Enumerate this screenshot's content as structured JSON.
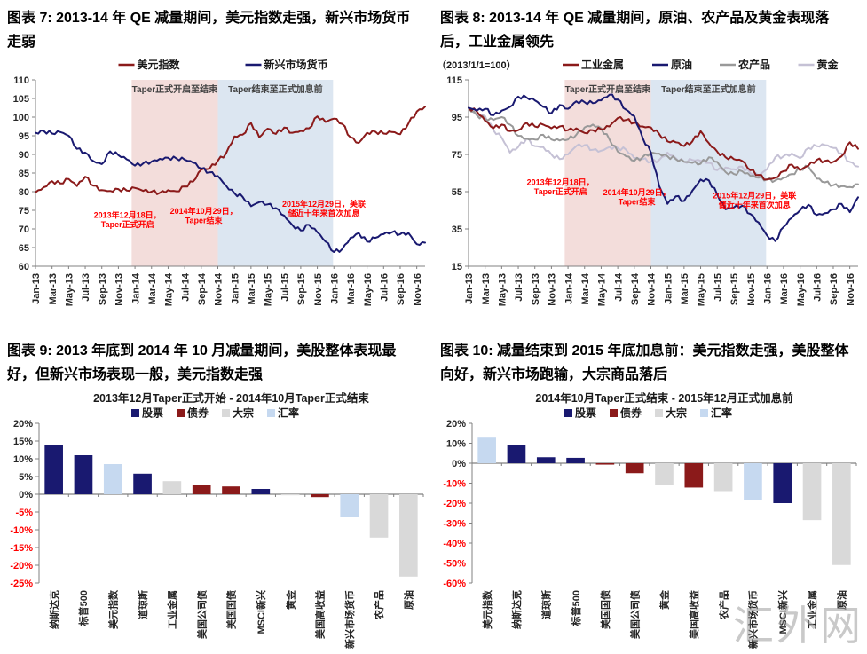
{
  "watermark": "汇外网",
  "palette": {
    "navy": "#191970",
    "dark_red": "#8B1A1A",
    "bar_gray": "#D9D9D9",
    "bar_light_blue": "#C6D9F0",
    "line_gray": "#999999",
    "line_gold": "#C5C1D5",
    "band_pink": "#F3DDDB",
    "band_blue": "#DCE6F1",
    "negative_label_red": "#FF0000",
    "axis_gray": "#808080"
  },
  "chart_data": [
    {
      "type": "line",
      "figure_title": "图表 7: 2013-14 年 QE 减量期间，美元指数走强，新兴市场货币走弱",
      "ylim": [
        60,
        110
      ],
      "ytick_step": 5,
      "n_months": 48,
      "x_labels": [
        "Jan-13",
        "Mar-13",
        "May-13",
        "Jul-13",
        "Sep-13",
        "Nov-13",
        "Jan-14",
        "Mar-14",
        "May-14",
        "Jul-14",
        "Sep-14",
        "Nov-14",
        "Jan-15",
        "Mar-15",
        "May-15",
        "Jul-15",
        "Sep-15",
        "Nov-15",
        "Jan-16",
        "Mar-16",
        "May-16",
        "Jul-16",
        "Sep-16",
        "Nov-16"
      ],
      "regions": [
        {
          "label": "Taper正式开启至结束",
          "from_month": 11.6,
          "to_month": 22,
          "color": "#F3DDDB"
        },
        {
          "label": "Taper结束至正式加息前",
          "from_month": 22,
          "to_month": 35.9,
          "color": "#DCE6F1"
        }
      ],
      "annotations": [
        {
          "text": "2013年12月18日，\nTaper正式开启",
          "month": 11.1,
          "value": 73.0
        },
        {
          "text": "2014年10月29日，\nTaper结束",
          "month": 20.3,
          "value": 74.0
        },
        {
          "text": "2015年12月29日，美联\n储近十年来首次加息",
          "month": 34.8,
          "value": 76.0
        }
      ],
      "legend": [
        {
          "name": "美元指数",
          "color": "#8B1A1A"
        },
        {
          "name": "新兴市场货币",
          "color": "#191970"
        }
      ],
      "series": [
        {
          "name": "美元指数",
          "color": "#8B1A1A",
          "values": [
            79.8,
            81.2,
            82.8,
            82.2,
            83.4,
            81.5,
            84.0,
            81.6,
            80.4,
            80.2,
            80.7,
            80.3,
            81.0,
            80.2,
            80.0,
            79.7,
            80.4,
            80.1,
            81.4,
            82.7,
            85.9,
            86.2,
            88.3,
            90.3,
            94.8,
            95.3,
            98.4,
            94.6,
            96.9,
            95.5,
            97.2,
            95.8,
            96.3,
            97.0,
            100.2,
            98.7,
            99.6,
            98.2,
            94.6,
            93.1,
            95.8,
            96.1,
            95.6,
            96.0,
            95.4,
            98.3,
            101.5,
            102.8
          ]
        },
        {
          "name": "新兴市场货币",
          "color": "#191970",
          "values": [
            95.8,
            96.3,
            95.6,
            96.0,
            95.0,
            91.5,
            90.5,
            88.2,
            87.4,
            90.8,
            89.8,
            88.7,
            87.0,
            87.6,
            88.1,
            88.8,
            89.1,
            88.9,
            88.6,
            87.8,
            86.2,
            85.2,
            84.2,
            81.6,
            79.6,
            78.6,
            76.1,
            77.2,
            76.6,
            75.6,
            73.6,
            71.0,
            69.6,
            71.1,
            69.1,
            66.6,
            63.8,
            64.6,
            67.6,
            68.9,
            66.6,
            67.6,
            68.6,
            69.1,
            68.6,
            68.9,
            65.9,
            66.3
          ]
        }
      ]
    },
    {
      "type": "line",
      "figure_title": "图表 8: 2013-14 年 QE 减量期间，原油、农产品及黄金表现落后，工业金属领先",
      "note": "（2013/1/1=100）",
      "ylim": [
        15,
        115
      ],
      "ytick_step": 20,
      "n_months": 48,
      "x_labels": [
        "Jan-13",
        "Mar-13",
        "May-13",
        "Jul-13",
        "Sep-13",
        "Nov-13",
        "Jan-14",
        "Mar-14",
        "May-14",
        "Jul-14",
        "Sep-14",
        "Nov-14",
        "Jan-15",
        "Mar-15",
        "May-15",
        "Jul-15",
        "Sep-15",
        "Nov-15",
        "Jan-16",
        "Mar-16",
        "May-16",
        "Jul-16",
        "Sep-16",
        "Nov-16"
      ],
      "regions": [
        {
          "label": "Taper正式开启至结束",
          "from_month": 11.6,
          "to_month": 22,
          "color": "#F3DDDB"
        },
        {
          "label": "Taper结束至正式加息前",
          "from_month": 22,
          "to_month": 35.9,
          "color": "#DCE6F1"
        }
      ],
      "annotations": [
        {
          "text": "2013年12月18日，\nTaper正式开启",
          "month": 11.1,
          "value": 58.5
        },
        {
          "text": "2014年10月29日，\nTaper结束",
          "month": 20.3,
          "value": 53.0
        },
        {
          "text": "2015年12月29日，美联\n储近十年来首次加息",
          "month": 34.5,
          "value": 51.5
        }
      ],
      "legend": [
        {
          "name": "工业金属",
          "color": "#8B1A1A"
        },
        {
          "name": "原油",
          "color": "#191970"
        },
        {
          "name": "农产品",
          "color": "#999999"
        },
        {
          "name": "黄金",
          "color": "#C5C1D5"
        }
      ],
      "series": [
        {
          "name": "黄金",
          "color": "#C5C1D5",
          "values": [
            100,
            96.5,
            95.5,
            88,
            84,
            76,
            79,
            83.5,
            79.5,
            79,
            75,
            72.5,
            75,
            79.5,
            80,
            77.5,
            77,
            79,
            78.5,
            77.5,
            73,
            72.5,
            71,
            72,
            76,
            73,
            71,
            72,
            71.5,
            70.5,
            66.5,
            68,
            67,
            68.5,
            65,
            63.5,
            67,
            73.5,
            74,
            75.5,
            73,
            78.5,
            79.5,
            80,
            78.5,
            75.5,
            71,
            68.5
          ]
        },
        {
          "name": "农产品",
          "color": "#999999",
          "values": [
            100,
            96,
            94,
            93.5,
            95,
            91,
            85,
            83.5,
            83,
            85.5,
            83,
            82.5,
            83,
            85.5,
            89.5,
            91,
            89,
            83,
            76.5,
            74,
            71.5,
            73.5,
            76,
            75.5,
            74,
            72.5,
            71,
            70.5,
            70,
            73.5,
            71,
            65.5,
            64.5,
            66,
            63.5,
            62.5,
            61.5,
            61,
            62.5,
            64.5,
            67,
            68.5,
            62,
            60,
            58.5,
            58,
            57.5,
            59
          ]
        },
        {
          "name": "工业金属",
          "color": "#8B1A1A",
          "values": [
            100,
            98,
            93,
            89,
            91,
            87.5,
            88,
            92,
            90,
            91,
            89,
            90,
            88,
            89,
            86.5,
            88,
            88.5,
            90,
            94.5,
            93.5,
            92,
            90,
            89.5,
            86,
            82,
            81.5,
            79.5,
            82,
            87.5,
            81,
            76.5,
            73.5,
            72.5,
            71.5,
            66.5,
            64,
            61.5,
            62.5,
            66,
            69.5,
            66.5,
            69,
            72,
            71.5,
            71,
            74,
            81.5,
            78
          ]
        },
        {
          "name": "原油",
          "color": "#191970",
          "values": [
            100,
            98.5,
            99.5,
            96,
            98.5,
            100.5,
            106,
            105.5,
            104,
            100.5,
            97,
            101.5,
            99.5,
            103.5,
            103,
            102.5,
            104,
            107,
            104.5,
            99,
            95.5,
            84,
            76,
            58,
            48.5,
            52.5,
            50,
            55.5,
            61.5,
            61,
            53.5,
            45.5,
            46.5,
            47.5,
            43,
            38.5,
            31.5,
            28.5,
            36,
            41,
            45,
            48,
            42.5,
            43.5,
            45.5,
            48.5,
            44,
            52
          ]
        }
      ]
    },
    {
      "type": "bar",
      "figure_title": "图表 9: 2013 年底到 2014 年 10 月减量期间，美股整体表现最好，但新兴市场表现一般，美元指数走强",
      "subtitle": "2013年12月Taper正式开始 - 2014年10月Taper正式结束",
      "ylim": [
        -25,
        20
      ],
      "ytick_step": 5,
      "legend": [
        {
          "name": "股票",
          "color": "#191970"
        },
        {
          "name": "债券",
          "color": "#8B1A1A"
        },
        {
          "name": "大宗",
          "color": "#D9D9D9"
        },
        {
          "name": "汇率",
          "color": "#C6D9F0"
        }
      ],
      "bars": [
        {
          "label": "纳斯达克",
          "value": 13.8,
          "group": "股票"
        },
        {
          "label": "标普500",
          "value": 11.0,
          "group": "股票"
        },
        {
          "label": "美元指数",
          "value": 8.5,
          "group": "汇率"
        },
        {
          "label": "道琼斯",
          "value": 5.8,
          "group": "股票"
        },
        {
          "label": "工业金属",
          "value": 3.7,
          "group": "大宗"
        },
        {
          "label": "美国公司债",
          "value": 2.7,
          "group": "债券"
        },
        {
          "label": "美国国债",
          "value": 2.2,
          "group": "债券"
        },
        {
          "label": "MSCI新兴",
          "value": 1.5,
          "group": "股票"
        },
        {
          "label": "黄金",
          "value": -0.3,
          "group": "大宗"
        },
        {
          "label": "美国高收益",
          "value": -0.8,
          "group": "债券"
        },
        {
          "label": "新兴市场货币",
          "value": -6.5,
          "group": "汇率"
        },
        {
          "label": "农产品",
          "value": -12.2,
          "group": "大宗"
        },
        {
          "label": "原油",
          "value": -23.2,
          "group": "大宗"
        }
      ]
    },
    {
      "type": "bar",
      "figure_title": "图表 10: 减量结束到 2015 年底加息前：美元指数走强，美股整体向好，新兴市场跑输，大宗商品落后",
      "subtitle": "2014年10月Taper正式结束 - 2015年12月正式加息前",
      "ylim": [
        -60,
        20
      ],
      "ytick_step": 10,
      "legend": [
        {
          "name": "股票",
          "color": "#191970"
        },
        {
          "name": "债券",
          "color": "#8B1A1A"
        },
        {
          "name": "大宗",
          "color": "#D9D9D9"
        },
        {
          "name": "汇率",
          "color": "#C6D9F0"
        }
      ],
      "bars": [
        {
          "label": "美元指数",
          "value": 12.8,
          "group": "汇率"
        },
        {
          "label": "纳斯达克",
          "value": 9.0,
          "group": "股票"
        },
        {
          "label": "道琼斯",
          "value": 3.0,
          "group": "股票"
        },
        {
          "label": "标普500",
          "value": 2.7,
          "group": "股票"
        },
        {
          "label": "美国国债",
          "value": -0.7,
          "group": "债券"
        },
        {
          "label": "美国公司债",
          "value": -5.0,
          "group": "债券"
        },
        {
          "label": "黄金",
          "value": -11.0,
          "group": "大宗"
        },
        {
          "label": "美国高收益",
          "value": -12.2,
          "group": "债券"
        },
        {
          "label": "农产品",
          "value": -14.0,
          "group": "大宗"
        },
        {
          "label": "新兴市场货币",
          "value": -18.5,
          "group": "汇率"
        },
        {
          "label": "MSCI新兴",
          "value": -20.0,
          "group": "股票"
        },
        {
          "label": "工业金属",
          "value": -28.5,
          "group": "大宗"
        },
        {
          "label": "原油",
          "value": -51.0,
          "group": "大宗"
        }
      ]
    }
  ]
}
